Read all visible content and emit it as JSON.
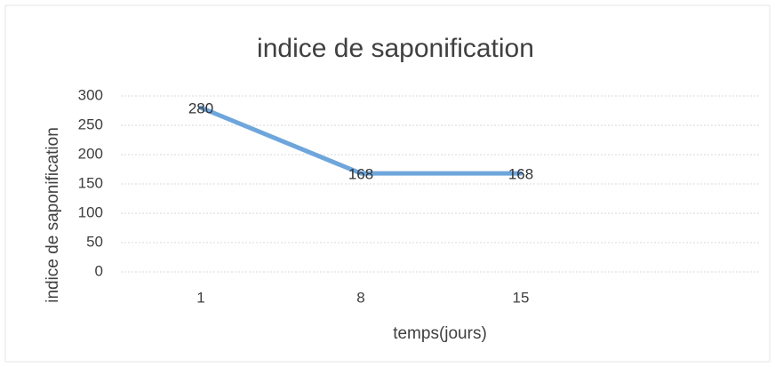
{
  "chart_data": {
    "type": "line",
    "title": "indice de saponification",
    "x_label": "temps(jours)",
    "y_label": "indice de saponification",
    "categories": [
      "1",
      "8",
      "15",
      null
    ],
    "series": [
      {
        "name": "indice de saponification",
        "color": "#6ea6dc",
        "values": [
          280,
          168,
          168,
          null
        ]
      }
    ],
    "ylim": [
      0,
      300
    ],
    "yticks": [
      0,
      50,
      100,
      150,
      200,
      250,
      300
    ],
    "grid": true,
    "data_labels": true
  }
}
